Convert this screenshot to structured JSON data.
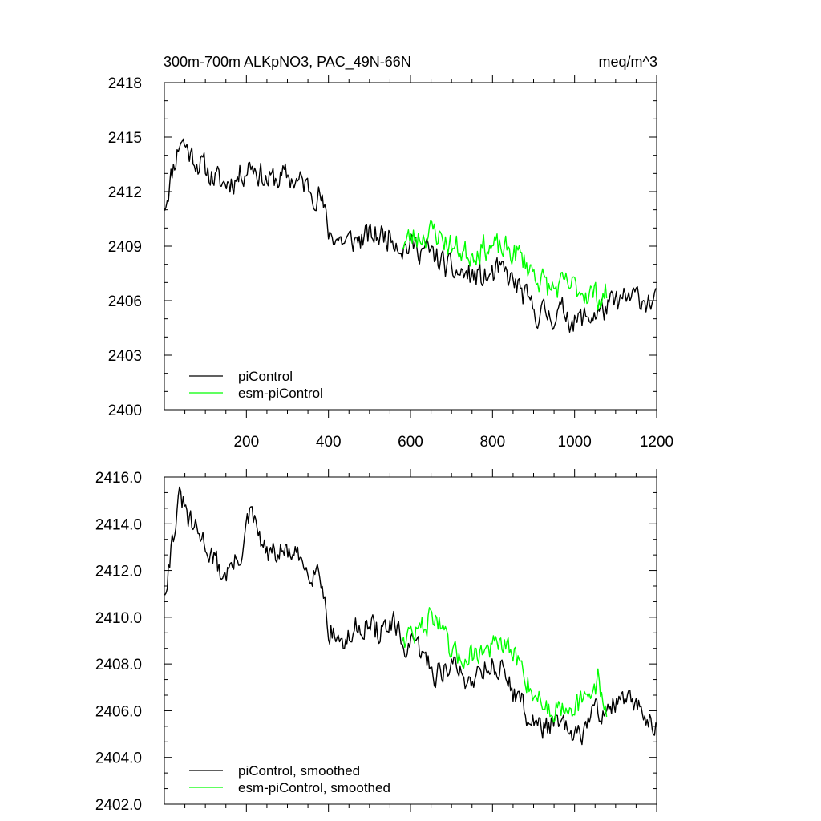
{
  "chart_data": [
    {
      "type": "line",
      "title": "300m-700m ALKpNO3, PAC_49N-66N",
      "units": "meq/m^3",
      "xlabel": "",
      "ylabel": "",
      "xlim": [
        0,
        1200
      ],
      "ylim": [
        2400,
        2418
      ],
      "x_ticks": [
        200,
        400,
        600,
        800,
        1000,
        1200
      ],
      "x_tick_labels": [
        "200",
        "400",
        "600",
        "800",
        "1000",
        "1200"
      ],
      "y_ticks": [
        2400,
        2403,
        2406,
        2409,
        2412,
        2415,
        2418
      ],
      "y_tick_labels": [
        "2400",
        "2403",
        "2406",
        "2409",
        "2412",
        "2415",
        "2418"
      ],
      "legend_position": "bottom-left",
      "series": [
        {
          "name": "piControl",
          "color": "#000000",
          "x_start": 1,
          "x_end": 1200,
          "anchors": [
            [
              1,
              2411.3
            ],
            [
              20,
              2413.2
            ],
            [
              40,
              2415.0
            ],
            [
              60,
              2414.2
            ],
            [
              100,
              2413.2
            ],
            [
              140,
              2412.4
            ],
            [
              180,
              2412.8
            ],
            [
              210,
              2413.6
            ],
            [
              250,
              2412.6
            ],
            [
              300,
              2412.8
            ],
            [
              340,
              2412.4
            ],
            [
              380,
              2411.8
            ],
            [
              400,
              2409.8
            ],
            [
              440,
              2409.2
            ],
            [
              480,
              2409.4
            ],
            [
              520,
              2409.6
            ],
            [
              560,
              2409.6
            ],
            [
              580,
              2409.0
            ],
            [
              620,
              2409.0
            ],
            [
              660,
              2408.4
            ],
            [
              700,
              2407.6
            ],
            [
              740,
              2407.4
            ],
            [
              780,
              2407.2
            ],
            [
              820,
              2407.6
            ],
            [
              860,
              2406.8
            ],
            [
              900,
              2405.4
            ],
            [
              940,
              2405.2
            ],
            [
              980,
              2405.4
            ],
            [
              1000,
              2404.8
            ],
            [
              1040,
              2405.2
            ],
            [
              1080,
              2405.6
            ],
            [
              1120,
              2406.0
            ],
            [
              1160,
              2406.2
            ],
            [
              1200,
              2405.8
            ]
          ],
          "noise": 1.2,
          "seed": 11
        },
        {
          "name": "esm-piControl",
          "color": "#00ff00",
          "x_start": 580,
          "x_end": 1080,
          "anchors": [
            [
              580,
              2409.2
            ],
            [
              620,
              2409.6
            ],
            [
              660,
              2409.8
            ],
            [
              700,
              2409.0
            ],
            [
              740,
              2408.6
            ],
            [
              780,
              2409.0
            ],
            [
              820,
              2408.8
            ],
            [
              860,
              2408.6
            ],
            [
              900,
              2407.6
            ],
            [
              940,
              2406.6
            ],
            [
              980,
              2406.8
            ],
            [
              1020,
              2406.6
            ],
            [
              1060,
              2406.2
            ],
            [
              1080,
              2406.4
            ]
          ],
          "noise": 1.2,
          "seed": 23
        }
      ]
    },
    {
      "type": "line",
      "title": "",
      "xlabel": "",
      "ylabel": "",
      "xlim": [
        0,
        1200
      ],
      "ylim": [
        2402,
        2416
      ],
      "x_ticks": [
        200,
        400,
        600,
        800,
        1000,
        1200
      ],
      "x_tick_labels": [],
      "y_ticks": [
        2402,
        2404,
        2406,
        2408,
        2410,
        2412,
        2414,
        2416
      ],
      "y_tick_labels": [
        "2402.0",
        "2404.0",
        "2406.0",
        "2408.0",
        "2410.0",
        "2412.0",
        "2414.0",
        "2416.0"
      ],
      "legend_position": "bottom-left",
      "series": [
        {
          "name": "piControl, smoothed",
          "color": "#000000",
          "x_start": 1,
          "x_end": 1200,
          "anchors": [
            [
              1,
              2411.2
            ],
            [
              20,
              2413.4
            ],
            [
              40,
              2415.2
            ],
            [
              60,
              2414.0
            ],
            [
              100,
              2413.2
            ],
            [
              140,
              2411.8
            ],
            [
              180,
              2412.4
            ],
            [
              210,
              2414.4
            ],
            [
              250,
              2412.6
            ],
            [
              300,
              2412.8
            ],
            [
              340,
              2412.2
            ],
            [
              380,
              2412.0
            ],
            [
              400,
              2409.6
            ],
            [
              440,
              2408.8
            ],
            [
              480,
              2409.8
            ],
            [
              520,
              2409.4
            ],
            [
              560,
              2409.6
            ],
            [
              580,
              2408.8
            ],
            [
              620,
              2408.6
            ],
            [
              660,
              2407.6
            ],
            [
              700,
              2408.0
            ],
            [
              740,
              2407.2
            ],
            [
              780,
              2408.0
            ],
            [
              820,
              2407.8
            ],
            [
              860,
              2406.6
            ],
            [
              900,
              2405.4
            ],
            [
              940,
              2405.4
            ],
            [
              980,
              2405.2
            ],
            [
              1000,
              2404.6
            ],
            [
              1040,
              2405.8
            ],
            [
              1080,
              2406.2
            ],
            [
              1120,
              2406.4
            ],
            [
              1160,
              2406.0
            ],
            [
              1200,
              2405.6
            ]
          ],
          "noise": 0.9,
          "seed": 31
        },
        {
          "name": "esm-piControl, smoothed",
          "color": "#00ff00",
          "x_start": 580,
          "x_end": 1080,
          "anchors": [
            [
              580,
              2409.2
            ],
            [
              620,
              2409.4
            ],
            [
              660,
              2410.2
            ],
            [
              700,
              2408.2
            ],
            [
              740,
              2408.4
            ],
            [
              780,
              2408.6
            ],
            [
              820,
              2408.8
            ],
            [
              860,
              2408.2
            ],
            [
              900,
              2406.8
            ],
            [
              940,
              2406.0
            ],
            [
              980,
              2406.4
            ],
            [
              1020,
              2406.2
            ],
            [
              1060,
              2407.4
            ],
            [
              1080,
              2405.6
            ]
          ],
          "noise": 0.9,
          "seed": 47
        }
      ]
    }
  ]
}
